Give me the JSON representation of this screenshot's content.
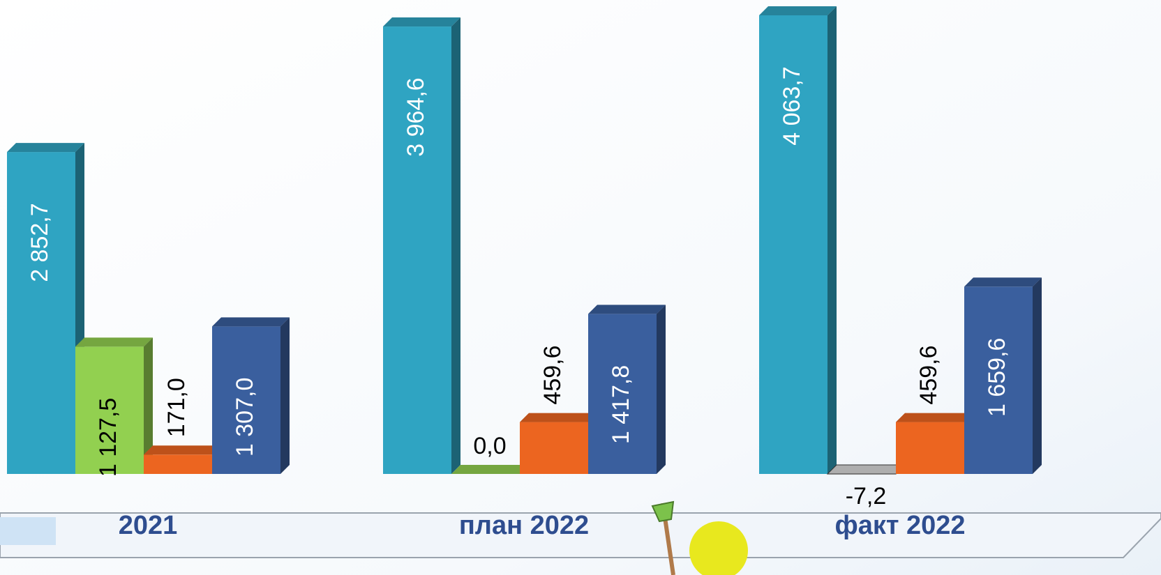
{
  "chart_data": {
    "type": "bar3d",
    "categories": [
      "2021",
      "план 2022",
      "факт 2022"
    ],
    "series": [
      {
        "color": "#2fa4c2",
        "values": [
          2852.7,
          3964.6,
          4063.7
        ],
        "value_labels": [
          "2 852,7",
          "3 964,6",
          "4 063,7"
        ]
      },
      {
        "color": "#92d050",
        "colors": [
          "#92d050",
          "#92d050",
          "#d9d9d9"
        ],
        "values": [
          1127.5,
          0.0,
          -7.2
        ],
        "value_labels": [
          "1 127,5",
          "0,0",
          "-7,2"
        ]
      },
      {
        "color": "#ec6520",
        "values": [
          171.0,
          459.6,
          459.6
        ],
        "value_labels": [
          "171,0",
          "459,6",
          "459,6"
        ]
      },
      {
        "color": "#3a5f9e",
        "values": [
          1307.0,
          1417.8,
          1659.6
        ],
        "value_labels": [
          "1 307,0",
          "1 417,8",
          "1 659,6"
        ]
      }
    ]
  }
}
